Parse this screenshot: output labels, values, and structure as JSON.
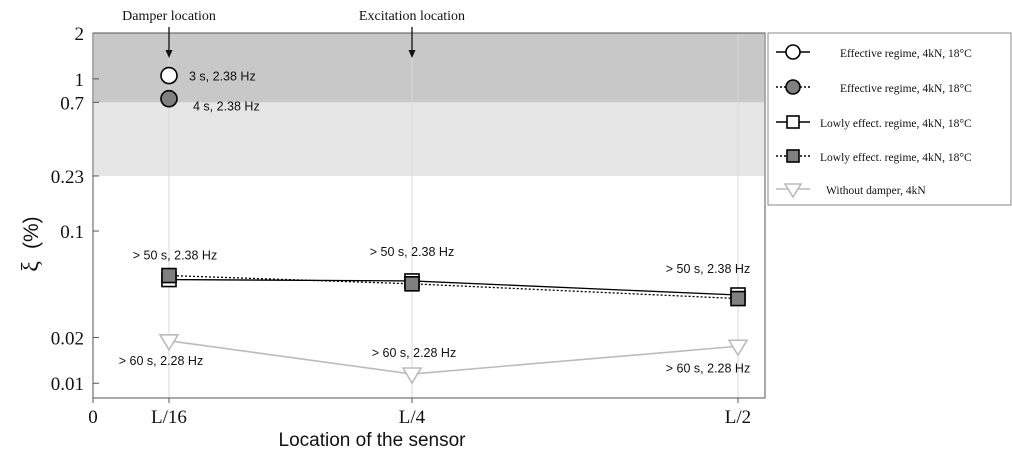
{
  "chart_data": {
    "type": "line",
    "title": "",
    "xlabel": "Location of the sensor",
    "ylabel_main": "ξ",
    "ylabel_unit": "(%)",
    "x_tick_labels": [
      "0",
      "L/16",
      "L/4",
      "L/2"
    ],
    "x_categories": [
      "L/16",
      "L/4",
      "L/2"
    ],
    "y_scale": "log",
    "y_range": [
      0.008,
      2
    ],
    "y_ticks": [
      0.01,
      0.02,
      0.1,
      0.23,
      0.7,
      1,
      2
    ],
    "y_tick_labels": [
      "0.01",
      "0.02",
      "0.1",
      "0.23",
      "0.7",
      "1",
      "2"
    ],
    "bands": [
      {
        "from": 0.7,
        "to": 2,
        "color": "#c8c8c8"
      },
      {
        "from": 0.23,
        "to": 0.7,
        "color": "#e6e6e6"
      }
    ],
    "grid": "vertical lines at sensor locations",
    "legend_position": "right, outside plot",
    "top_annotations": [
      {
        "text": "Damper location",
        "x": "L/16"
      },
      {
        "text": "Excitation location",
        "x": "L/4"
      }
    ],
    "series": [
      {
        "name": "Effective regime, 4kN, 18°C",
        "marker": "circle-open",
        "line": "solid",
        "color": "#000000",
        "fill": "#ffffff",
        "points": [
          {
            "x": "L/16",
            "y": 1.05
          }
        ]
      },
      {
        "name": "Effective regime, 4kN, 18°C",
        "marker": "circle-filled",
        "line": "dotted",
        "color": "#000000",
        "fill": "#808080",
        "points": [
          {
            "x": "L/16",
            "y": 0.74
          }
        ]
      },
      {
        "name": "Lowly effect. regime, 4kN, 18°C",
        "marker": "square-open",
        "line": "solid",
        "color": "#000000",
        "fill": "#ffffff",
        "points": [
          {
            "x": "L/16",
            "y": 0.048
          },
          {
            "x": "L/4",
            "y": 0.047
          },
          {
            "x": "L/2",
            "y": 0.038
          }
        ]
      },
      {
        "name": "Lowly effect. regime, 4kN, 18°C",
        "marker": "square-filled",
        "line": "dotted",
        "color": "#000000",
        "fill": "#808080",
        "points": [
          {
            "x": "L/16",
            "y": 0.051
          },
          {
            "x": "L/4",
            "y": 0.045
          },
          {
            "x": "L/2",
            "y": 0.036
          }
        ]
      },
      {
        "name": "Without damper, 4kN",
        "marker": "triangle-down-open",
        "line": "solid",
        "color": "#bbbbbb",
        "fill": "#ffffff",
        "points": [
          {
            "x": "L/16",
            "y": 0.019
          },
          {
            "x": "L/4",
            "y": 0.0115
          },
          {
            "x": "L/2",
            "y": 0.0175
          }
        ]
      }
    ],
    "annotations": [
      {
        "text": "3 s, 2.38 Hz",
        "x": "L/16",
        "y": 1.05
      },
      {
        "text": "4 s, 2.38 Hz",
        "x": "L/16",
        "y": 0.74
      },
      {
        "text": "> 50 s, 2.38 Hz",
        "x": "L/16",
        "y": 0.048
      },
      {
        "text": "> 50 s, 2.38 Hz",
        "x": "L/4",
        "y": 0.047
      },
      {
        "text": "> 50 s, 2.38 Hz",
        "x": "L/2",
        "y": 0.038
      },
      {
        "text": "> 60 s, 2.28 Hz",
        "x": "L/16",
        "y": 0.019
      },
      {
        "text": "> 60 s, 2.28 Hz",
        "x": "L/4",
        "y": 0.0115
      },
      {
        "text": "> 60 s, 2.28 Hz",
        "x": "L/2",
        "y": 0.0175
      }
    ]
  }
}
